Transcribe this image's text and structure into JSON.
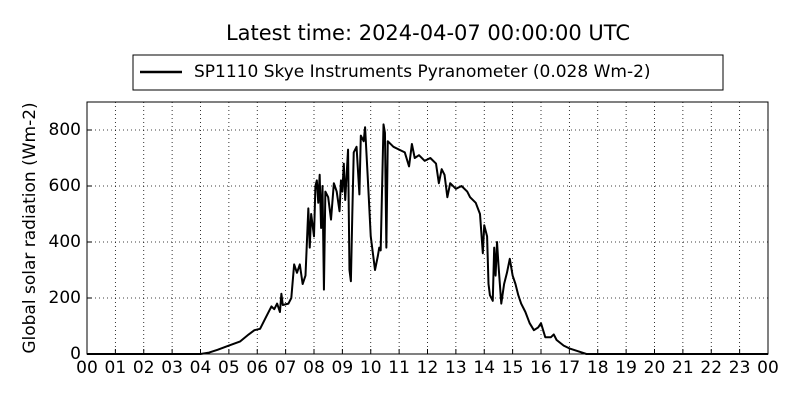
{
  "chart_data": {
    "type": "line",
    "title": "Latest time: 2024-04-07 00:00:00 UTC",
    "ylabel": "Global solar radiation (Wm-2)",
    "xlim": [
      0,
      24
    ],
    "ylim": [
      0,
      900
    ],
    "yticks": [
      0,
      200,
      400,
      600,
      800
    ],
    "xticks": [
      {
        "value": 0,
        "label": "00"
      },
      {
        "value": 1,
        "label": "01"
      },
      {
        "value": 2,
        "label": "02"
      },
      {
        "value": 3,
        "label": "03"
      },
      {
        "value": 4,
        "label": "04"
      },
      {
        "value": 5,
        "label": "05"
      },
      {
        "value": 6,
        "label": "06"
      },
      {
        "value": 7,
        "label": "07"
      },
      {
        "value": 8,
        "label": "08"
      },
      {
        "value": 9,
        "label": "09"
      },
      {
        "value": 10,
        "label": "10"
      },
      {
        "value": 11,
        "label": "11"
      },
      {
        "value": 12,
        "label": "12"
      },
      {
        "value": 13,
        "label": "13"
      },
      {
        "value": 14,
        "label": "14"
      },
      {
        "value": 15,
        "label": "15"
      },
      {
        "value": 16,
        "label": "16"
      },
      {
        "value": 17,
        "label": "17"
      },
      {
        "value": 18,
        "label": "18"
      },
      {
        "value": 19,
        "label": "19"
      },
      {
        "value": 20,
        "label": "20"
      },
      {
        "value": 21,
        "label": "21"
      },
      {
        "value": 22,
        "label": "22"
      },
      {
        "value": 23,
        "label": "23"
      },
      {
        "value": 24,
        "label": "00"
      }
    ],
    "grid": true,
    "legend_position": "top",
    "x": [
      0,
      4.0,
      4.3,
      4.6,
      5.0,
      5.4,
      5.7,
      5.9,
      6.1,
      6.3,
      6.5,
      6.6,
      6.7,
      6.8,
      6.85,
      6.9,
      7.1,
      7.2,
      7.3,
      7.4,
      7.5,
      7.6,
      7.7,
      7.75,
      7.8,
      7.85,
      7.9,
      8.0,
      8.05,
      8.1,
      8.15,
      8.2,
      8.25,
      8.3,
      8.35,
      8.4,
      8.5,
      8.6,
      8.7,
      8.8,
      8.9,
      8.95,
      9.0,
      9.05,
      9.1,
      9.2,
      9.25,
      9.3,
      9.35,
      9.4,
      9.5,
      9.6,
      9.65,
      9.75,
      9.8,
      9.9,
      10.0,
      10.05,
      10.15,
      10.25,
      10.3,
      10.35,
      10.45,
      10.5,
      10.55,
      10.6,
      10.8,
      11.0,
      11.2,
      11.35,
      11.45,
      11.55,
      11.7,
      11.9,
      12.1,
      12.3,
      12.4,
      12.5,
      12.6,
      12.7,
      12.8,
      13.0,
      13.2,
      13.4,
      13.5,
      13.7,
      13.85,
      13.95,
      14.0,
      14.1,
      14.15,
      14.2,
      14.3,
      14.35,
      14.4,
      14.45,
      14.5,
      14.6,
      14.7,
      14.8,
      14.9,
      15.0,
      15.1,
      15.2,
      15.3,
      15.45,
      15.6,
      15.75,
      15.9,
      16.0,
      16.15,
      16.35,
      16.45,
      16.55,
      16.8,
      17.0,
      17.3,
      17.6,
      24
    ],
    "series": [
      {
        "name": "SP1110 Skye Instruments Pyranometer (0.028 Wm-2)",
        "color": "#000000",
        "values": [
          0,
          0,
          5,
          15,
          30,
          45,
          70,
          85,
          90,
          130,
          170,
          160,
          180,
          150,
          215,
          175,
          180,
          200,
          320,
          290,
          320,
          250,
          280,
          400,
          520,
          380,
          500,
          420,
          600,
          620,
          540,
          640,
          450,
          600,
          230,
          580,
          560,
          480,
          610,
          580,
          510,
          620,
          580,
          680,
          550,
          730,
          300,
          260,
          500,
          720,
          740,
          570,
          780,
          760,
          810,
          620,
          420,
          380,
          300,
          350,
          380,
          370,
          820,
          790,
          380,
          760,
          740,
          730,
          720,
          670,
          750,
          700,
          710,
          690,
          700,
          680,
          610,
          660,
          640,
          560,
          610,
          590,
          600,
          580,
          560,
          540,
          500,
          360,
          460,
          420,
          250,
          210,
          190,
          380,
          280,
          400,
          320,
          180,
          250,
          290,
          340,
          280,
          250,
          210,
          180,
          150,
          110,
          85,
          95,
          110,
          60,
          60,
          70,
          50,
          30,
          20,
          10,
          0,
          0
        ]
      }
    ]
  }
}
